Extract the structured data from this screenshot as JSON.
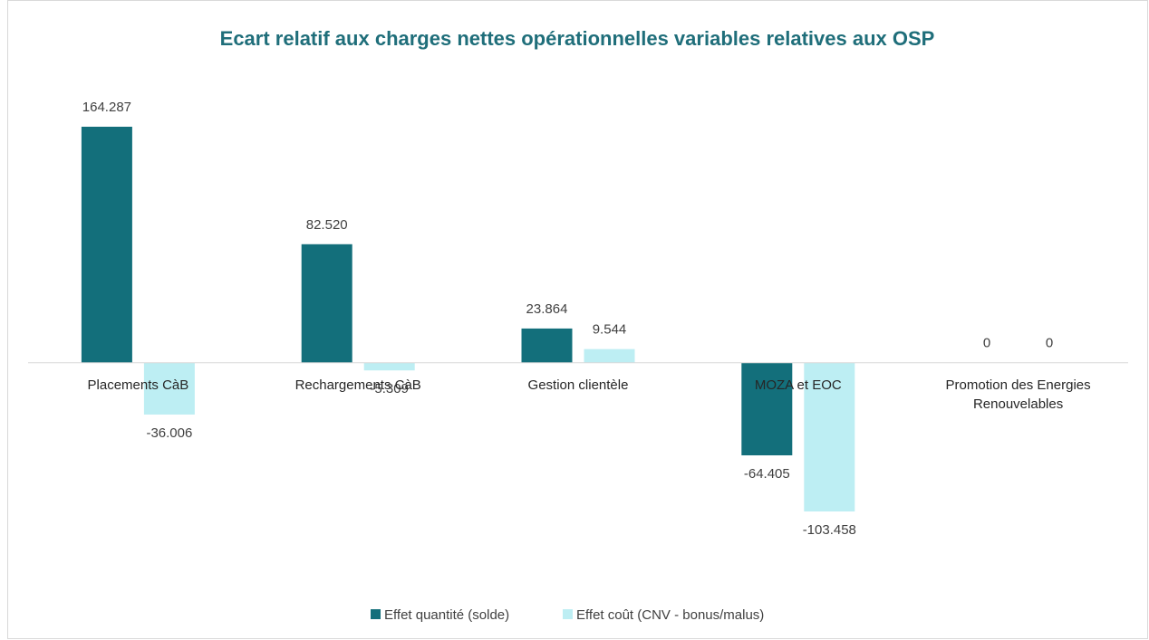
{
  "chart_data": {
    "type": "bar",
    "title": "Ecart relatif aux charges nettes opérationnelles variables relatives aux OSP",
    "categories": [
      "Placements CàB",
      "Rechargements CàB",
      "Gestion clientèle",
      "MOZA et EOC",
      "Promotion des Energies Renouvelables"
    ],
    "series": [
      {
        "name": "Effet quantité (solde)",
        "color": "#136f7b",
        "values": [
          164.287,
          82.52,
          23.864,
          -64.405,
          0
        ],
        "value_labels": [
          "164.287",
          "82.520",
          "23.864",
          "-64.405",
          "0"
        ]
      },
      {
        "name": "Effet coût (CNV - bonus/malus)",
        "color": "#bdeef3",
        "values": [
          -36.006,
          -5.309,
          9.544,
          -103.458,
          0
        ],
        "value_labels": [
          "-36.006",
          "-5.309",
          "9.544",
          "-103.458",
          "0"
        ]
      }
    ],
    "legend": "bottom"
  }
}
